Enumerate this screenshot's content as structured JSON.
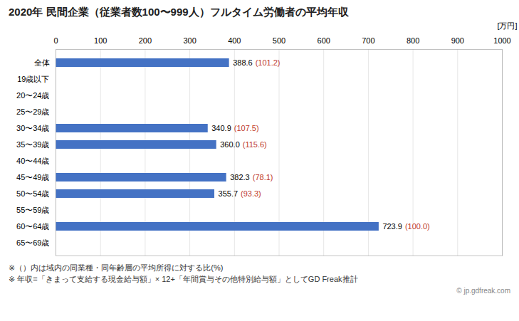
{
  "chart_data": {
    "type": "bar",
    "orientation": "horizontal",
    "title": "2020年 民間企業（従業者数100〜999人）フルタイム労働者の平均年収",
    "xlabel": "[万円]",
    "categories": [
      "全体",
      "19歳以下",
      "20〜24歳",
      "25〜29歳",
      "30〜34歳",
      "35〜39歳",
      "40〜44歳",
      "45〜49歳",
      "50〜54歳",
      "55〜59歳",
      "60〜64歳",
      "65〜69歳"
    ],
    "values": [
      388.6,
      null,
      null,
      null,
      340.9,
      360.0,
      null,
      382.3,
      355.7,
      null,
      723.9,
      null
    ],
    "value_labels": [
      "388.6",
      null,
      null,
      null,
      "340.9",
      "360.0",
      null,
      "382.3",
      "355.7",
      null,
      "723.9",
      null
    ],
    "percentage_labels": [
      "(101.2)",
      null,
      null,
      null,
      "(107.5)",
      "(115.6)",
      null,
      "(78.1)",
      "(93.3)",
      null,
      "(100.0)",
      null
    ],
    "color": "#4472C4",
    "xlim": [
      0,
      1000
    ],
    "xticks": [
      0,
      100,
      200,
      300,
      400,
      500,
      600,
      700,
      800,
      900,
      1000
    ],
    "grid": true,
    "data_labels": true,
    "annotations": [
      "※（）内は域内の同業種・同年齢層の平均所得に対する比(%)",
      "※ 年収=「きまって支給する現金給与額」× 12+「年間賞与その他特別給与額」としてGD Freak推計",
      "© jp.gdfreak.com"
    ]
  }
}
